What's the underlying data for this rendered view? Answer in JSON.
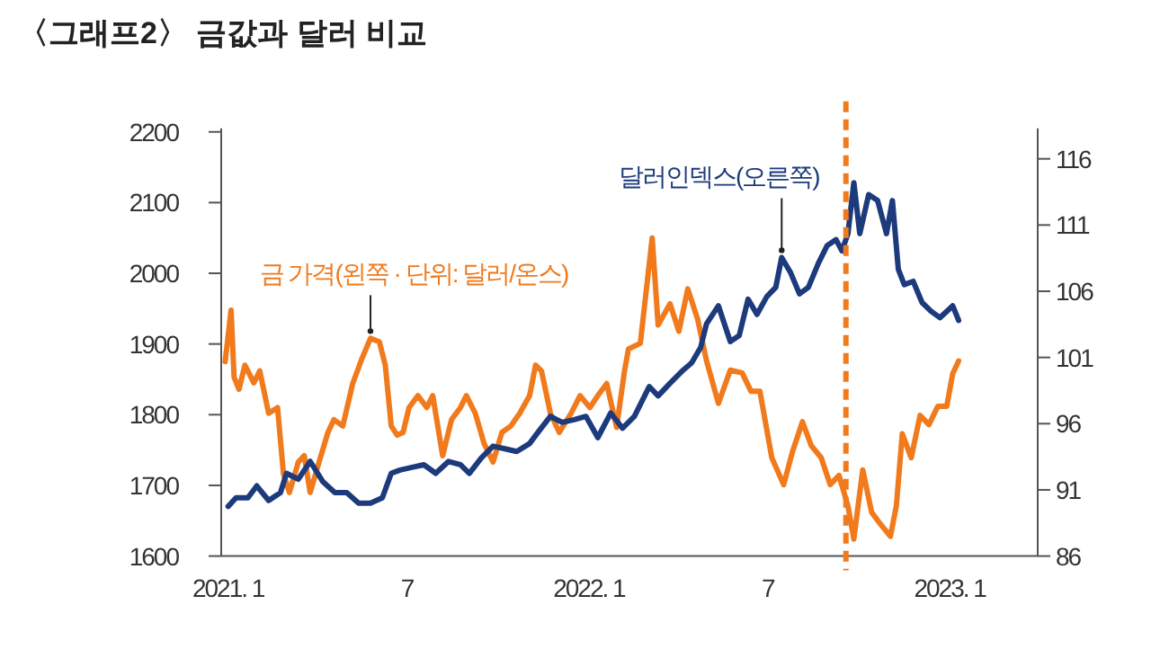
{
  "chart_data": {
    "type": "line",
    "title": "〈그래프2〉 금값과 달러 비교",
    "xlim": [
      "2020-12-25",
      "2023-03-31"
    ],
    "xticks": [
      {
        "value": "2021-01-01",
        "label": "2021. 1"
      },
      {
        "value": "2021-07-01",
        "label": "7"
      },
      {
        "value": "2022-01-01",
        "label": "2022. 1"
      },
      {
        "value": "2022-07-01",
        "label": "7"
      },
      {
        "value": "2023-01-01",
        "label": "2023. 1"
      }
    ],
    "ylim": [
      1600,
      2205
    ],
    "yticks": [
      1600,
      1700,
      1800,
      1900,
      2000,
      2100,
      2200
    ],
    "y2lim": [
      86,
      118.3
    ],
    "y2ticks": [
      86,
      91,
      96,
      101,
      106,
      111,
      116
    ],
    "ref_lines": [
      {
        "axis": "x",
        "value": "2022-09-18",
        "color": "#f07a1c",
        "line_style": "dashed"
      }
    ],
    "series": [
      {
        "name": "금 가격(왼쪽 · 단위: 달러/온스)",
        "color": "#f07a1c",
        "x": [
          "2020-12-29",
          "2021-01-04",
          "2021-01-07",
          "2021-01-12",
          "2021-01-18",
          "2021-01-27",
          "2021-02-02",
          "2021-02-11",
          "2021-02-20",
          "2021-02-26",
          "2021-03-04",
          "2021-03-13",
          "2021-03-19",
          "2021-03-25",
          "2021-04-03",
          "2021-04-12",
          "2021-04-18",
          "2021-04-27",
          "2021-05-07",
          "2021-05-16",
          "2021-05-25",
          "2021-06-03",
          "2021-06-09",
          "2021-06-15",
          "2021-06-21",
          "2021-06-27",
          "2021-07-03",
          "2021-07-12",
          "2021-07-21",
          "2021-07-27",
          "2021-08-06",
          "2021-08-15",
          "2021-08-24",
          "2021-08-30",
          "2021-09-08",
          "2021-09-17",
          "2021-09-26",
          "2021-10-05",
          "2021-10-14",
          "2021-10-23",
          "2021-11-02",
          "2021-11-08",
          "2021-11-14",
          "2021-11-23",
          "2021-12-02",
          "2021-12-14",
          "2021-12-23",
          "2022-01-02",
          "2022-01-10",
          "2022-01-19",
          "2022-01-29",
          "2022-02-06",
          "2022-02-10",
          "2022-02-22",
          "2022-03-06",
          "2022-03-12",
          "2022-03-24",
          "2022-04-02",
          "2022-04-11",
          "2022-04-21",
          "2022-04-30",
          "2022-05-12",
          "2022-05-24",
          "2022-06-05",
          "2022-06-14",
          "2022-06-23",
          "2022-07-05",
          "2022-07-17",
          "2022-07-26",
          "2022-08-05",
          "2022-08-14",
          "2022-08-24",
          "2022-09-02",
          "2022-09-11",
          "2022-09-20",
          "2022-09-26",
          "2022-10-05",
          "2022-10-14",
          "2022-10-23",
          "2022-11-02",
          "2022-11-08",
          "2022-11-14",
          "2022-11-23",
          "2022-12-02",
          "2022-12-11",
          "2022-12-20",
          "2022-12-29",
          "2023-01-04",
          "2023-01-10"
        ],
        "values": [
          1875,
          1948,
          1853,
          1836,
          1870,
          1845,
          1862,
          1802,
          1810,
          1716,
          1690,
          1733,
          1742,
          1690,
          1733,
          1775,
          1793,
          1784,
          1844,
          1878,
          1908,
          1903,
          1870,
          1784,
          1771,
          1775,
          1810,
          1827,
          1810,
          1827,
          1742,
          1793,
          1810,
          1827,
          1802,
          1759,
          1733,
          1775,
          1784,
          1802,
          1827,
          1870,
          1862,
          1802,
          1775,
          1802,
          1827,
          1810,
          1827,
          1844,
          1782,
          1862,
          1893,
          1901,
          2050,
          1927,
          1957,
          1918,
          1978,
          1935,
          1876,
          1816,
          1863,
          1859,
          1833,
          1833,
          1739,
          1701,
          1748,
          1790,
          1756,
          1739,
          1701,
          1714,
          1671,
          1624,
          1722,
          1662,
          1645,
          1628,
          1671,
          1773,
          1739,
          1799,
          1786,
          1812,
          1812,
          1858,
          1876
        ]
      },
      {
        "name": "달러인덱스(오른쪽)",
        "color": "#1c3a7c",
        "axis": "y2",
        "x": [
          "2021-01-01",
          "2021-01-09",
          "2021-01-21",
          "2021-01-30",
          "2021-02-11",
          "2021-02-23",
          "2021-03-01",
          "2021-03-13",
          "2021-03-25",
          "2021-04-07",
          "2021-04-19",
          "2021-05-01",
          "2021-05-13",
          "2021-05-25",
          "2021-06-06",
          "2021-06-15",
          "2021-06-24",
          "2021-07-06",
          "2021-07-18",
          "2021-07-30",
          "2021-08-12",
          "2021-08-24",
          "2021-09-02",
          "2021-09-14",
          "2021-09-26",
          "2021-10-08",
          "2021-10-20",
          "2021-11-02",
          "2021-11-11",
          "2021-11-23",
          "2021-12-05",
          "2021-12-17",
          "2021-12-29",
          "2022-01-10",
          "2022-01-23",
          "2022-02-04",
          "2022-02-16",
          "2022-03-03",
          "2022-03-12",
          "2022-03-24",
          "2022-04-05",
          "2022-04-15",
          "2022-04-24",
          "2022-04-30",
          "2022-05-12",
          "2022-05-24",
          "2022-06-02",
          "2022-06-11",
          "2022-06-20",
          "2022-06-30",
          "2022-07-09",
          "2022-07-15",
          "2022-07-24",
          "2022-08-02",
          "2022-08-11",
          "2022-08-21",
          "2022-08-30",
          "2022-09-08",
          "2022-09-14",
          "2022-09-20",
          "2022-09-26",
          "2022-10-02",
          "2022-10-11",
          "2022-10-20",
          "2022-10-29",
          "2022-11-04",
          "2022-11-10",
          "2022-11-16",
          "2022-11-25",
          "2022-12-04",
          "2022-12-13",
          "2022-12-22",
          "2023-01-04",
          "2023-01-10"
        ],
        "values": [
          89.75,
          90.4,
          90.4,
          91.3,
          90.2,
          90.8,
          92.25,
          91.8,
          93.15,
          91.6,
          90.8,
          90.8,
          90.0,
          90.0,
          90.4,
          92.25,
          92.5,
          92.7,
          92.9,
          92.25,
          93.15,
          92.9,
          92.25,
          93.4,
          94.3,
          94.1,
          93.9,
          94.5,
          95.4,
          96.55,
          96.1,
          96.3,
          96.55,
          94.95,
          96.8,
          95.65,
          96.55,
          98.8,
          98.1,
          99.05,
          99.95,
          100.6,
          101.75,
          103.55,
          104.9,
          102.2,
          102.65,
          105.4,
          104.25,
          105.6,
          106.3,
          108.55,
          107.4,
          105.8,
          106.3,
          108.1,
          109.45,
          109.9,
          109.05,
          110.35,
          114.2,
          110.35,
          113.3,
          112.85,
          110.35,
          112.85,
          107.65,
          106.5,
          106.75,
          105.15,
          104.5,
          104.0,
          104.9,
          103.8
        ]
      }
    ]
  }
}
